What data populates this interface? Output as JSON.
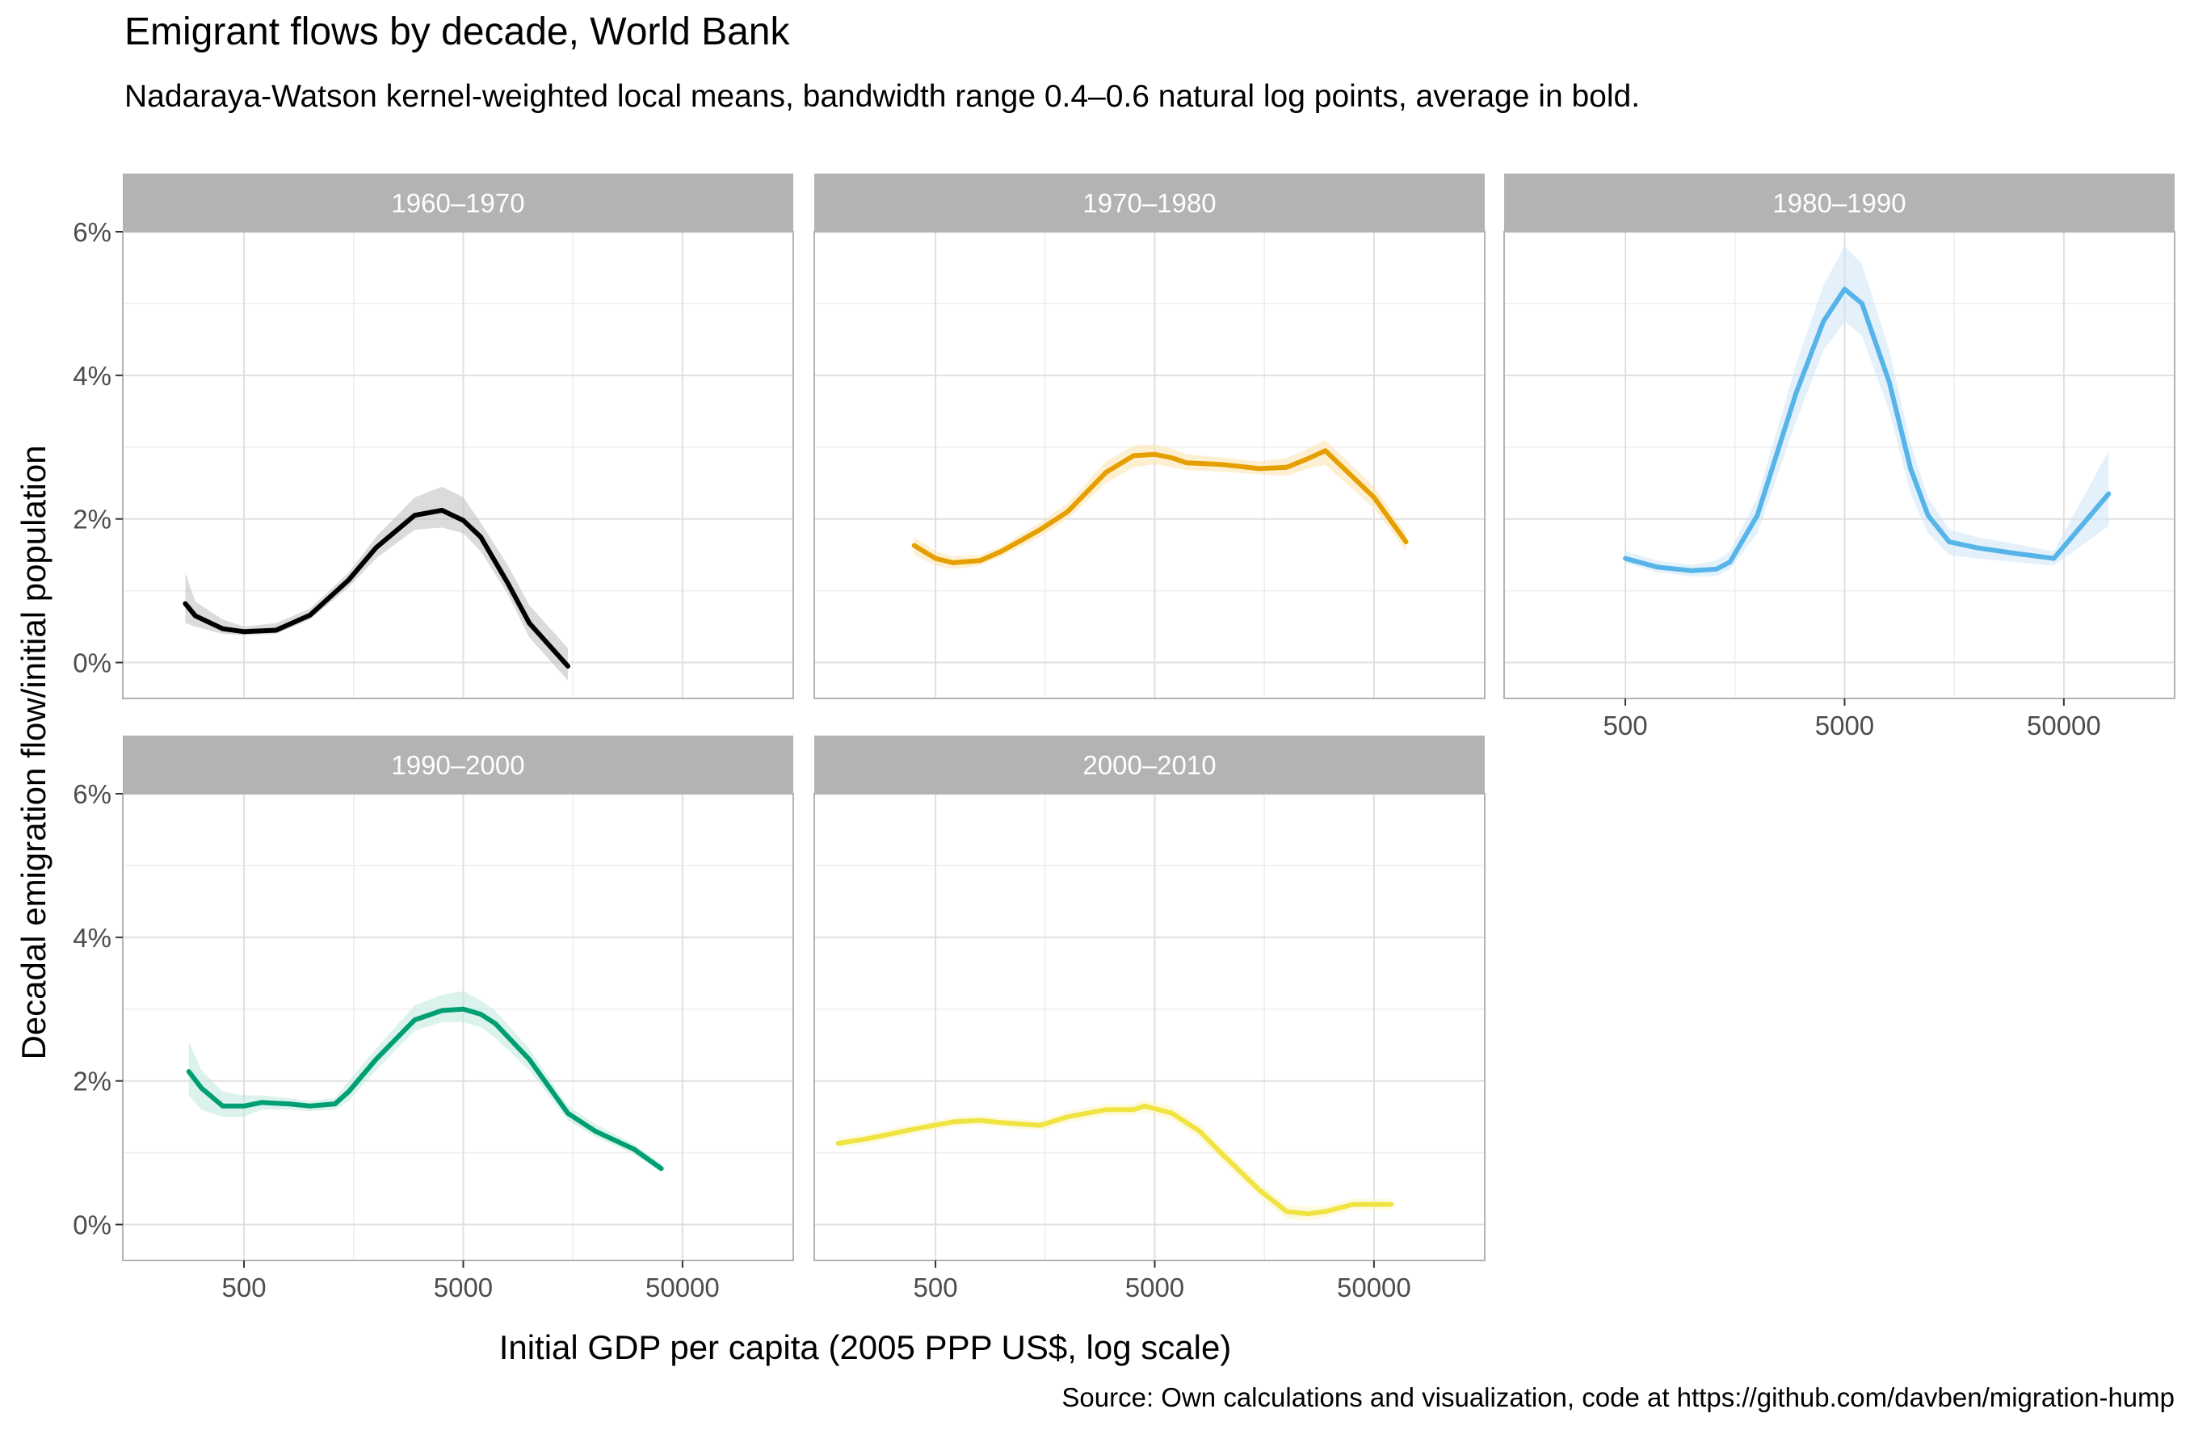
{
  "chart_data": {
    "type": "line",
    "title": "Emigrant flows by decade, World Bank",
    "subtitle": "Nadaraya-Watson kernel-weighted local means, bandwidth range 0.4–0.6 natural log points, average in bold.",
    "xlabel": "Initial GDP per capita (2005 PPP US$, log scale)",
    "ylabel": "Decadal emigration flow/initial population",
    "caption": "Source: Own calculations and visualization, code at https://github.com/davben/migration-hump",
    "x_scale": "log10",
    "xlim": [
      140,
      160000
    ],
    "ylim": [
      -0.5,
      6
    ],
    "x_ticks": [
      500,
      5000,
      50000
    ],
    "x_tick_labels": [
      "500",
      "5000",
      "50000"
    ],
    "y_ticks": [
      0,
      2,
      4,
      6
    ],
    "y_tick_labels": [
      "0%",
      "2%",
      "4%",
      "6%"
    ],
    "grid": true,
    "facets": [
      {
        "label": "1960–1970",
        "color": "#000000",
        "band_color": "#bdbdbd",
        "x": [
          270,
          300,
          400,
          500,
          700,
          1000,
          1500,
          2000,
          3000,
          4000,
          5000,
          6000,
          8000,
          10000,
          15000
        ],
        "y": [
          0.82,
          0.65,
          0.47,
          0.43,
          0.45,
          0.66,
          1.15,
          1.6,
          2.05,
          2.12,
          1.98,
          1.75,
          1.1,
          0.55,
          -0.05
        ],
        "band_lower": [
          0.55,
          0.5,
          0.4,
          0.38,
          0.4,
          0.6,
          1.05,
          1.45,
          1.85,
          1.88,
          1.8,
          1.55,
          0.95,
          0.35,
          -0.25
        ],
        "band_upper": [
          1.25,
          0.85,
          0.6,
          0.5,
          0.55,
          0.75,
          1.25,
          1.75,
          2.3,
          2.45,
          2.3,
          1.95,
          1.35,
          0.8,
          0.2
        ]
      },
      {
        "label": "1970–1980",
        "color": "#e69f00",
        "band_color": "#fbe3ad",
        "x": [
          400,
          500,
          600,
          800,
          1000,
          1500,
          2000,
          3000,
          4000,
          5000,
          6000,
          7000,
          10000,
          15000,
          20000,
          25000,
          30000,
          50000,
          70000
        ],
        "y": [
          1.63,
          1.45,
          1.39,
          1.42,
          1.55,
          1.85,
          2.1,
          2.65,
          2.88,
          2.9,
          2.85,
          2.78,
          2.76,
          2.7,
          2.72,
          2.84,
          2.95,
          2.3,
          1.68
        ],
        "band_lower": [
          1.5,
          1.35,
          1.3,
          1.35,
          1.48,
          1.75,
          2.0,
          2.5,
          2.72,
          2.76,
          2.72,
          2.68,
          2.66,
          2.62,
          2.6,
          2.7,
          2.75,
          2.15,
          1.55
        ],
        "band_upper": [
          1.75,
          1.55,
          1.48,
          1.5,
          1.62,
          1.95,
          2.22,
          2.8,
          3.02,
          3.04,
          2.98,
          2.9,
          2.86,
          2.8,
          2.85,
          2.98,
          3.1,
          2.45,
          1.8
        ]
      },
      {
        "label": "1980–1990",
        "color": "#56b4e9",
        "band_color": "#cde6f7",
        "x": [
          500,
          700,
          1000,
          1300,
          1500,
          2000,
          3000,
          4000,
          5000,
          6000,
          8000,
          10000,
          12000,
          15000,
          20000,
          30000,
          45000,
          80000
        ],
        "y": [
          1.45,
          1.33,
          1.28,
          1.3,
          1.4,
          2.05,
          3.75,
          4.75,
          5.2,
          5.0,
          3.9,
          2.7,
          2.05,
          1.68,
          1.6,
          1.52,
          1.45,
          2.35
        ],
        "band_lower": [
          1.38,
          1.26,
          1.2,
          1.2,
          1.3,
          1.8,
          3.35,
          4.35,
          4.75,
          4.55,
          3.5,
          2.35,
          1.8,
          1.5,
          1.45,
          1.4,
          1.35,
          1.9
        ],
        "band_upper": [
          1.55,
          1.42,
          1.36,
          1.42,
          1.55,
          2.3,
          4.15,
          5.25,
          5.8,
          5.55,
          4.35,
          3.05,
          2.3,
          1.85,
          1.75,
          1.65,
          1.55,
          2.95
        ]
      },
      {
        "label": "1990–2000",
        "color": "#009e73",
        "band_color": "#bfe8dc",
        "x": [
          280,
          320,
          400,
          500,
          600,
          800,
          1000,
          1300,
          1500,
          2000,
          3000,
          4000,
          5000,
          6000,
          7000,
          10000,
          15000,
          20000,
          30000,
          40000
        ],
        "y": [
          2.13,
          1.9,
          1.65,
          1.65,
          1.7,
          1.68,
          1.65,
          1.68,
          1.85,
          2.3,
          2.85,
          2.98,
          3.0,
          2.93,
          2.8,
          2.3,
          1.55,
          1.3,
          1.05,
          0.78
        ],
        "band_lower": [
          1.8,
          1.6,
          1.5,
          1.5,
          1.6,
          1.6,
          1.58,
          1.6,
          1.72,
          2.15,
          2.7,
          2.82,
          2.82,
          2.75,
          2.6,
          2.15,
          1.45,
          1.22,
          0.98,
          0.72
        ],
        "band_upper": [
          2.55,
          2.15,
          1.85,
          1.8,
          1.8,
          1.76,
          1.72,
          1.76,
          2.0,
          2.45,
          3.05,
          3.2,
          3.25,
          3.12,
          2.98,
          2.45,
          1.65,
          1.4,
          1.12,
          0.85
        ]
      },
      {
        "label": "2000–2010",
        "color": "#f0e442",
        "band_color": "#fbf5c6",
        "x": [
          180,
          250,
          400,
          600,
          800,
          1000,
          1500,
          2000,
          3000,
          4000,
          4500,
          6000,
          8000,
          10000,
          15000,
          20000,
          25000,
          30000,
          40000,
          60000
        ],
        "y": [
          1.13,
          1.2,
          1.33,
          1.43,
          1.45,
          1.42,
          1.38,
          1.5,
          1.6,
          1.6,
          1.65,
          1.55,
          1.3,
          1.0,
          0.48,
          0.18,
          0.15,
          0.18,
          0.28,
          0.28
        ],
        "band_lower": [
          1.06,
          1.13,
          1.26,
          1.36,
          1.38,
          1.35,
          1.31,
          1.42,
          1.52,
          1.52,
          1.56,
          1.46,
          1.2,
          0.9,
          0.38,
          0.08,
          0.05,
          0.1,
          0.2,
          0.2
        ],
        "band_upper": [
          1.2,
          1.27,
          1.4,
          1.5,
          1.52,
          1.49,
          1.45,
          1.58,
          1.68,
          1.68,
          1.74,
          1.64,
          1.4,
          1.1,
          0.58,
          0.28,
          0.25,
          0.26,
          0.36,
          0.36
        ]
      }
    ]
  }
}
